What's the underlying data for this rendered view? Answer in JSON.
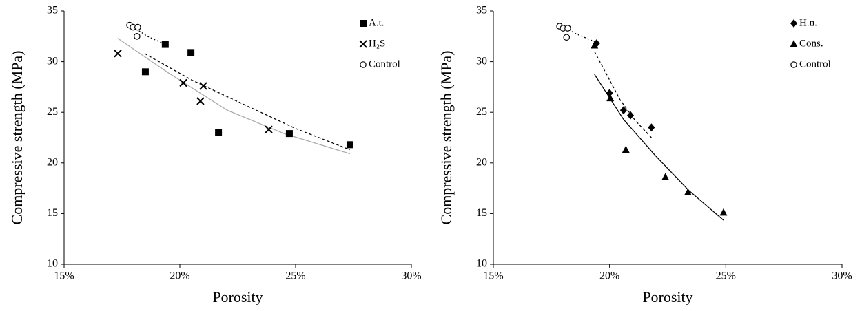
{
  "chart_data": [
    {
      "type": "scatter",
      "xlabel": "Porosity",
      "ylabel": "Compressive strength (MPa)",
      "xlim": [
        15,
        30
      ],
      "xticks": [
        {
          "value": 15,
          "label": "15%"
        },
        {
          "value": 20,
          "label": "20%"
        },
        {
          "value": 25,
          "label": "25%"
        },
        {
          "value": 30,
          "label": "30%"
        }
      ],
      "ylim": [
        10,
        35
      ],
      "yticks": [
        10,
        15,
        20,
        25,
        30,
        35
      ],
      "grid": false,
      "legend": "upper right",
      "series": [
        {
          "name": "A.t.",
          "marker": "square",
          "color": "#000000",
          "x": [
            19.37,
            18.51,
            20.48,
            21.67,
            24.73,
            27.35
          ],
          "values": [
            31.7,
            29.0,
            30.9,
            23.0,
            22.9,
            21.8
          ]
        },
        {
          "name": "H₂S",
          "marker": "cross",
          "color": "#000000",
          "x": [
            17.32,
            20.15,
            21.01,
            20.89,
            23.84
          ],
          "values": [
            30.8,
            27.9,
            27.6,
            26.1,
            23.3
          ]
        },
        {
          "name": "Control",
          "marker": "circle",
          "color": "#000000",
          "x": [
            17.83,
            17.98,
            18.18,
            18.15
          ],
          "values": [
            33.6,
            33.4,
            33.4,
            32.5
          ]
        }
      ],
      "trendlines": [
        {
          "style": "dotted",
          "color": "#000000",
          "x": [
            17.86,
            18.6,
            19.37
          ],
          "values": [
            33.6,
            32.5,
            31.7
          ]
        },
        {
          "style": "dashed",
          "color": "#000000",
          "x": [
            18.48,
            20.5,
            22.65,
            25,
            27.35
          ],
          "values": [
            30.8,
            28.2,
            25.9,
            23.4,
            21.3
          ]
        },
        {
          "style": "solid",
          "color": "#aaaaaa",
          "x": [
            17.32,
            19.5,
            22.05,
            24.5,
            27.35
          ],
          "values": [
            32.3,
            28.9,
            25.2,
            22.9,
            20.9
          ]
        }
      ]
    },
    {
      "type": "scatter",
      "xlabel": "Porosity",
      "ylabel": "Compressive strength (MPa)",
      "xlim": [
        15,
        30
      ],
      "xticks": [
        {
          "value": 15,
          "label": "15%"
        },
        {
          "value": 20,
          "label": "20%"
        },
        {
          "value": 25,
          "label": "25%"
        },
        {
          "value": 30,
          "label": "30%"
        }
      ],
      "ylim": [
        10,
        35
      ],
      "yticks": [
        10,
        15,
        20,
        25,
        30,
        35
      ],
      "grid": false,
      "legend": "upper right",
      "series": [
        {
          "name": "H.n.",
          "marker": "diamond",
          "color": "#000000",
          "x": [
            19.44,
            20.0,
            20.6,
            20.9,
            21.8
          ],
          "values": [
            31.8,
            26.9,
            25.2,
            24.7,
            23.5
          ]
        },
        {
          "name": "Cons.",
          "marker": "triangle",
          "color": "#000000",
          "x": [
            19.35,
            20.03,
            20.7,
            22.4,
            23.37,
            24.9
          ],
          "values": [
            31.6,
            26.4,
            21.3,
            18.6,
            17.1,
            15.1
          ]
        },
        {
          "name": "Control",
          "marker": "circle",
          "color": "#000000",
          "x": [
            17.85,
            18.0,
            18.2,
            18.15
          ],
          "values": [
            33.5,
            33.3,
            33.3,
            32.4
          ]
        }
      ],
      "trendlines": [
        {
          "style": "dotted",
          "color": "#000000",
          "x": [
            17.85,
            18.6,
            19.44
          ],
          "values": [
            33.6,
            32.7,
            31.9
          ]
        },
        {
          "style": "dashed",
          "color": "#000000",
          "x": [
            19.35,
            20.46,
            21.1,
            21.8
          ],
          "values": [
            31.0,
            26.2,
            24.2,
            22.5
          ]
        },
        {
          "style": "solid",
          "color": "#000000",
          "x": [
            19.35,
            20.6,
            21.94,
            23.4,
            24.9
          ],
          "values": [
            28.75,
            24.3,
            20.8,
            17.3,
            14.35
          ]
        }
      ]
    }
  ]
}
